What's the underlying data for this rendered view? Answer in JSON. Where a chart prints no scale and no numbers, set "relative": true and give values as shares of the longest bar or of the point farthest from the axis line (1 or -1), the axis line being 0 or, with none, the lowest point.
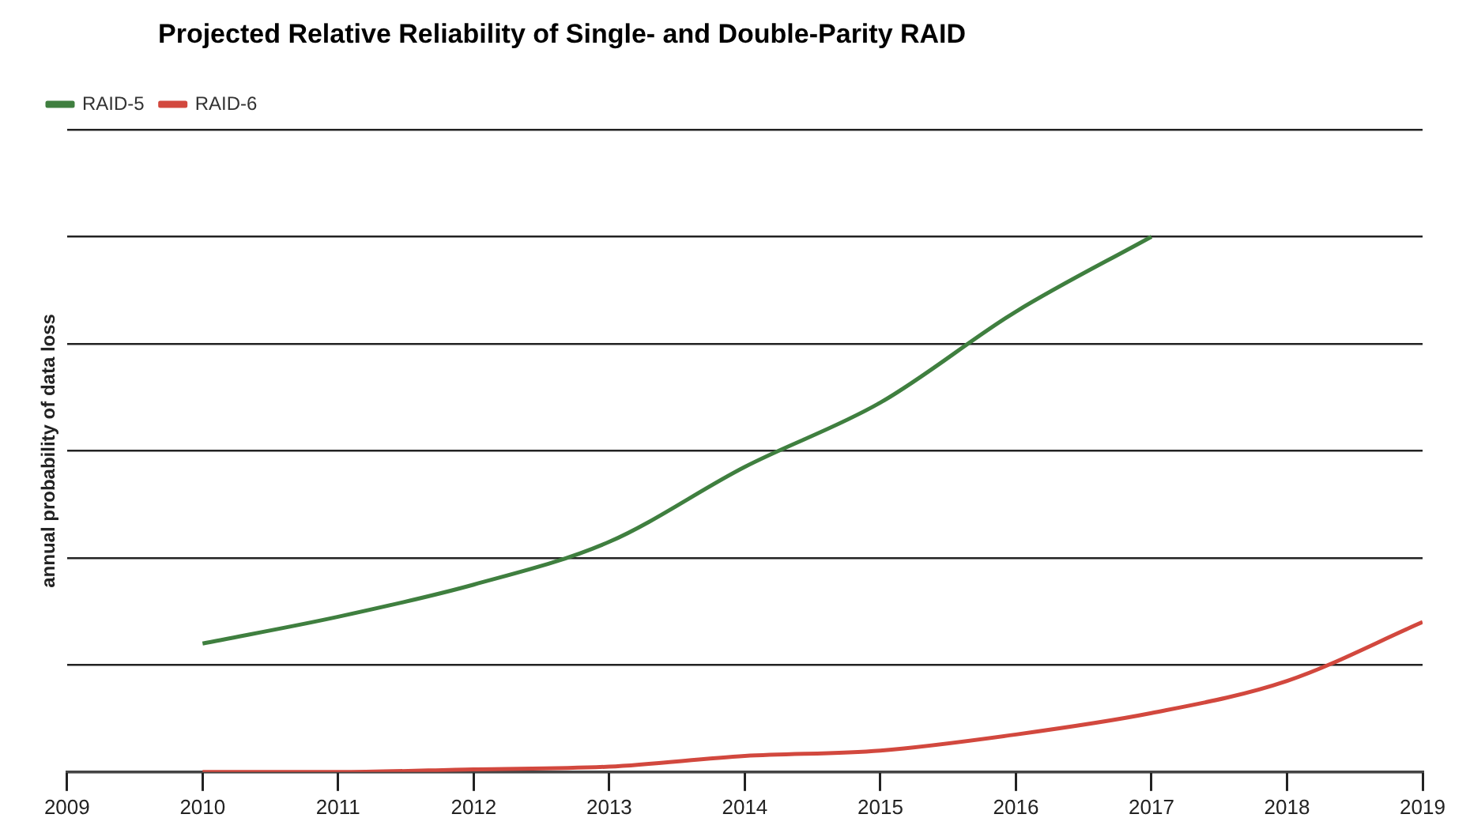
{
  "chart_data": {
    "type": "line",
    "title": "Projected Relative Reliability of Single- and Double-Parity RAID",
    "ylabel": "annual probability of data loss",
    "relative": true,
    "x": [
      2010,
      2011,
      2012,
      2013,
      2014,
      2015,
      2016,
      2017,
      2018,
      2019
    ],
    "xlim": [
      2009,
      2019
    ],
    "xticks": [
      2009,
      2010,
      2011,
      2012,
      2013,
      2014,
      2015,
      2016,
      2017,
      2018,
      2019
    ],
    "series": [
      {
        "name": "RAID-5",
        "color": "#3f7f3f",
        "values": [
          0.24,
          0.29,
          0.35,
          0.43,
          0.57,
          0.69,
          0.86,
          1,
          null,
          null
        ]
      },
      {
        "name": "RAID-6",
        "color": "#d2483e",
        "values": [
          0,
          0,
          0.005,
          0.01,
          0.03,
          0.04,
          0.07,
          0.11,
          0.17,
          0.28
        ]
      }
    ],
    "grid": "y",
    "legend": "top left",
    "marker": "none",
    "line_style": "solid"
  }
}
